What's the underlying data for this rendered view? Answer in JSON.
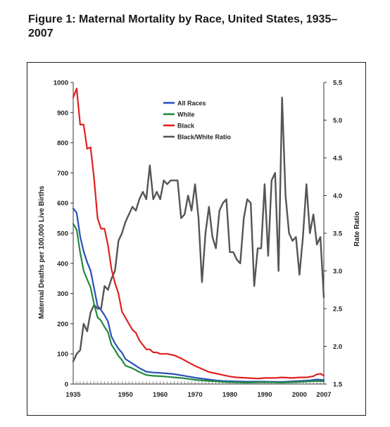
{
  "figure": {
    "title": "Figure 1: Maternal Mortality by Race, United States, 1935–2007"
  },
  "chart_data": {
    "type": "line",
    "title": "Figure 1: Maternal Mortality by Race, United States, 1935–2007",
    "ylabel": "Maternal Deaths per 100,000 Live Births",
    "y2label": "Rate Ratio",
    "xlim": [
      1935,
      2007
    ],
    "ylim": [
      0,
      1000
    ],
    "y2lim": [
      1.5,
      5.5
    ],
    "x_ticks": [
      1935,
      1950,
      1960,
      1970,
      1980,
      1990,
      2000,
      2007
    ],
    "y_ticks": [
      0,
      100,
      200,
      300,
      400,
      500,
      600,
      700,
      800,
      900,
      1000
    ],
    "y2_ticks": [
      "1.5",
      "2.0",
      "2.5",
      "3.0",
      "3.5",
      "4.0",
      "4.5",
      "5.0",
      "5.5"
    ],
    "legend_position": "top-center",
    "grid": false,
    "series": [
      {
        "name": "All Races",
        "axis": "left",
        "color": "#2a4fb8",
        "x": [
          1935,
          1936,
          1937,
          1938,
          1939,
          1940,
          1941,
          1942,
          1943,
          1944,
          1945,
          1946,
          1947,
          1948,
          1949,
          1950,
          1952,
          1954,
          1956,
          1958,
          1960,
          1962,
          1964,
          1966,
          1968,
          1970,
          1972,
          1974,
          1976,
          1978,
          1980,
          1985,
          1990,
          1995,
          2000,
          2003,
          2005,
          2007
        ],
        "values": [
          582,
          568,
          489,
          440,
          404,
          376,
          317,
          259,
          245,
          228,
          207,
          157,
          135,
          117,
          104,
          83,
          68,
          53,
          41,
          38,
          37,
          35,
          33,
          29,
          25,
          21,
          18,
          15,
          12,
          10,
          9,
          8,
          8,
          7,
          10,
          12,
          15,
          13
        ]
      },
      {
        "name": "White",
        "axis": "left",
        "color": "#1f8a3e",
        "x": [
          1935,
          1936,
          1937,
          1938,
          1939,
          1940,
          1941,
          1942,
          1943,
          1944,
          1945,
          1946,
          1947,
          1948,
          1949,
          1950,
          1952,
          1954,
          1956,
          1958,
          1960,
          1962,
          1964,
          1966,
          1968,
          1970,
          1972,
          1974,
          1976,
          1978,
          1980,
          1985,
          1990,
          1995,
          2000,
          2003,
          2005,
          2007
        ],
        "values": [
          531,
          512,
          436,
          376,
          347,
          320,
          265,
          221,
          210,
          189,
          172,
          130,
          113,
          93,
          80,
          61,
          52,
          40,
          30,
          27,
          26,
          24,
          22,
          20,
          17,
          14,
          12,
          10,
          9,
          7,
          6,
          5,
          6,
          5,
          7,
          9,
          10,
          9
        ]
      },
      {
        "name": "Black",
        "axis": "left",
        "color": "#e02020",
        "x": [
          1935,
          1936,
          1937,
          1938,
          1939,
          1940,
          1941,
          1942,
          1943,
          1944,
          1945,
          1946,
          1947,
          1948,
          1949,
          1950,
          1951,
          1952,
          1953,
          1954,
          1955,
          1956,
          1957,
          1958,
          1959,
          1960,
          1962,
          1964,
          1966,
          1968,
          1970,
          1972,
          1974,
          1976,
          1978,
          1980,
          1982,
          1985,
          1988,
          1990,
          1993,
          1995,
          1998,
          2000,
          2002,
          2004,
          2005,
          2006,
          2007
        ],
        "values": [
          950,
          980,
          860,
          860,
          780,
          785,
          680,
          550,
          515,
          515,
          460,
          380,
          335,
          300,
          240,
          220,
          200,
          180,
          170,
          145,
          130,
          115,
          115,
          105,
          105,
          100,
          100,
          95,
          85,
          72,
          60,
          50,
          40,
          35,
          30,
          25,
          22,
          20,
          18,
          20,
          20,
          22,
          20,
          22,
          22,
          26,
          32,
          34,
          28
        ]
      },
      {
        "name": "Black/White Ratio",
        "axis": "right",
        "color": "#555555",
        "x": [
          1935,
          1936,
          1937,
          1938,
          1939,
          1940,
          1941,
          1942,
          1943,
          1944,
          1945,
          1946,
          1947,
          1948,
          1949,
          1950,
          1951,
          1952,
          1953,
          1954,
          1955,
          1956,
          1957,
          1958,
          1959,
          1960,
          1961,
          1962,
          1963,
          1964,
          1965,
          1966,
          1967,
          1968,
          1969,
          1970,
          1971,
          1972,
          1973,
          1974,
          1975,
          1976,
          1977,
          1978,
          1979,
          1980,
          1981,
          1982,
          1983,
          1984,
          1985,
          1986,
          1987,
          1988,
          1989,
          1990,
          1991,
          1992,
          1993,
          1994,
          1995,
          1996,
          1997,
          1998,
          1999,
          2000,
          2001,
          2002,
          2003,
          2004,
          2005,
          2006,
          2007
        ],
        "values": [
          1.8,
          1.9,
          1.95,
          2.3,
          2.2,
          2.45,
          2.55,
          2.5,
          2.5,
          2.8,
          2.75,
          2.9,
          3.0,
          3.4,
          3.5,
          3.65,
          3.75,
          3.85,
          3.8,
          3.95,
          4.05,
          3.95,
          4.4,
          3.95,
          4.05,
          3.95,
          4.2,
          4.15,
          4.2,
          4.2,
          4.2,
          3.7,
          3.75,
          4.0,
          3.8,
          4.15,
          3.7,
          2.85,
          3.5,
          3.85,
          3.45,
          3.3,
          3.8,
          3.9,
          3.95,
          3.25,
          3.25,
          3.15,
          3.1,
          3.7,
          3.95,
          3.9,
          2.8,
          3.3,
          3.3,
          4.15,
          3.2,
          4.2,
          4.3,
          3.0,
          5.3,
          4.0,
          3.5,
          3.4,
          3.45,
          2.95,
          3.45,
          4.15,
          3.5,
          3.75,
          3.35,
          3.45,
          2.65
        ]
      }
    ]
  }
}
